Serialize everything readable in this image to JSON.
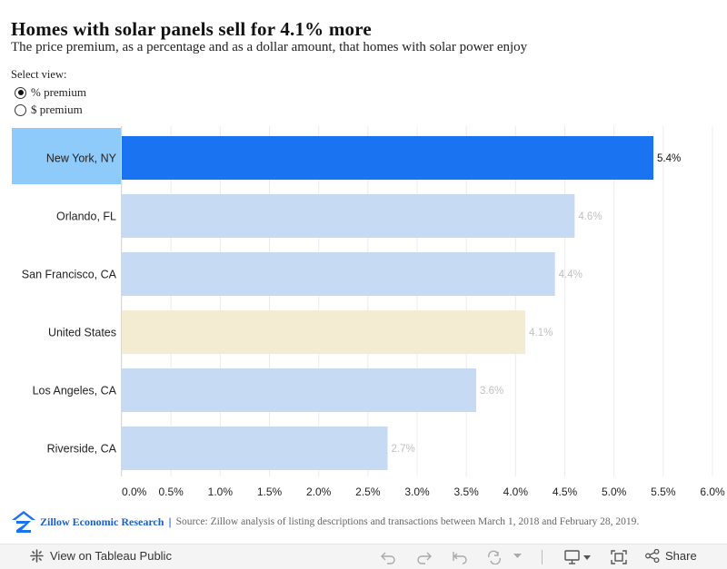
{
  "header": {
    "title": "Homes with solar panels sell for 4.1% more",
    "subtitle": "The price premium, as a percentage and as a dollar amount, that homes with solar power enjoy"
  },
  "view_selector": {
    "label": "Select view:",
    "options": [
      {
        "label": "% premium",
        "selected": true
      },
      {
        "label": "$ premium",
        "selected": false
      }
    ]
  },
  "chart_data": {
    "type": "bar",
    "orientation": "horizontal",
    "categories": [
      "New York, NY",
      "Orlando, FL",
      "San Francisco, CA",
      "United States",
      "Los Angeles, CA",
      "Riverside, CA"
    ],
    "values": [
      5.4,
      4.6,
      4.4,
      4.1,
      3.6,
      2.7
    ],
    "data_labels": [
      "5.4%",
      "4.6%",
      "4.4%",
      "4.1%",
      "3.6%",
      "2.7%"
    ],
    "x_ticks": [
      0,
      0.5,
      1,
      1.5,
      2,
      2.5,
      3,
      3.5,
      4,
      4.5,
      5,
      5.5,
      6
    ],
    "x_tick_labels": [
      "0.0%",
      "0.5%",
      "1.0%",
      "1.5%",
      "2.0%",
      "2.5%",
      "3.0%",
      "3.5%",
      "4.0%",
      "4.5%",
      "5.0%",
      "5.5%",
      "6.0%"
    ],
    "xlim": [
      0,
      6.0
    ],
    "grid": true,
    "highlighted_category": "New York, NY",
    "colors": {
      "highlight_bar": "#1a73f0",
      "highlight_label_bg": "#8fcbfa",
      "bar": "#c6daf4",
      "national_bar": "#f3ecd2",
      "label_highlight": "#111111",
      "label_muted": "#c0c0c0"
    }
  },
  "footer": {
    "brand": "Zillow Economic Research",
    "separator": "|",
    "source": "Source: Zillow analysis of listing descriptions and transactions between March 1, 2018 and February 28, 2019."
  },
  "toolbar": {
    "view_label": "View on Tableau Public",
    "share_label": "Share",
    "icons": [
      "tableau-icon",
      "undo-icon",
      "redo-icon",
      "revert-icon",
      "refresh-icon",
      "dropdown-icon",
      "download-icon",
      "fullscreen-icon",
      "share-icon"
    ]
  }
}
